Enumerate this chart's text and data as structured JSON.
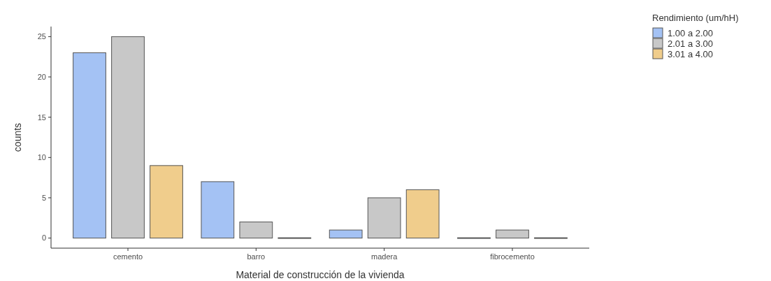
{
  "chart_data": {
    "type": "bar",
    "xlabel": "Material de construcción de la vivienda",
    "ylabel": "counts",
    "legend_title": "Rendimiento (um/hH)",
    "categories": [
      "cemento",
      "barro",
      "madera",
      "fibrocemento"
    ],
    "series": [
      {
        "name": "1.00 a 2.00",
        "color": "#a4c2f4",
        "values": [
          23,
          7,
          1,
          0
        ]
      },
      {
        "name": "2.01 a 3.00",
        "color": "#c8c8c8",
        "values": [
          25,
          2,
          5,
          1
        ]
      },
      {
        "name": "3.01 a 4.00",
        "color": "#f0cd8c",
        "values": [
          9,
          0,
          6,
          0
        ]
      }
    ],
    "ylim": [
      -1.25,
      26.25
    ],
    "yticks": [
      0,
      5,
      10,
      15,
      20,
      25
    ],
    "grid": false,
    "legend": "top right"
  }
}
